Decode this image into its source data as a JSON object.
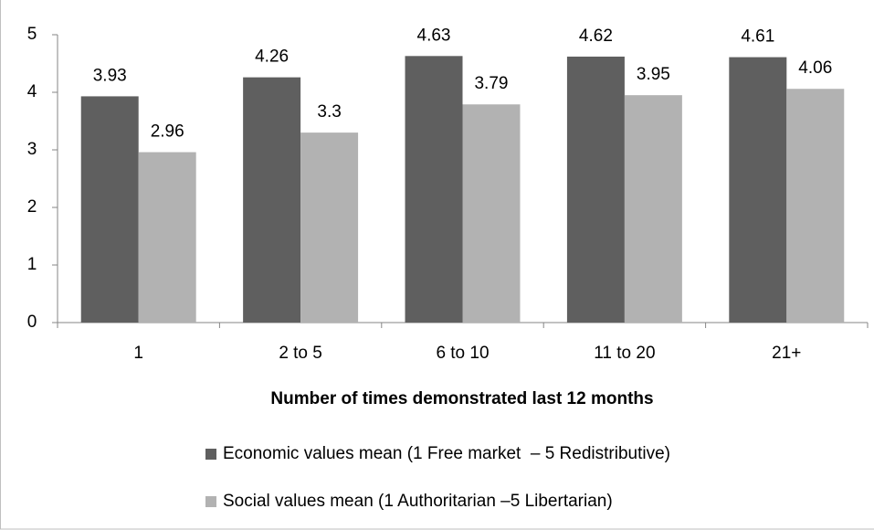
{
  "chart_data": {
    "type": "bar",
    "x_label": "Number of times demonstrated last 12 months",
    "categories": [
      "1",
      "2 to 5",
      "6 to 10",
      "11 to 20",
      "21+"
    ],
    "series": [
      {
        "name": "Economic values mean (1 Free market  – 5 Redistributive)",
        "color": "#5f5f5f",
        "values": [
          3.93,
          4.26,
          4.63,
          4.62,
          4.61
        ]
      },
      {
        "name": "Social values mean (1 Authoritarian –5 Libertarian)",
        "color": "#b2b2b2",
        "values": [
          2.96,
          3.3,
          3.79,
          3.95,
          4.06
        ]
      }
    ],
    "ylim": [
      0,
      5
    ],
    "yticks": [
      0,
      1,
      2,
      3,
      4,
      5
    ],
    "grid": false,
    "legend": "bottom"
  }
}
